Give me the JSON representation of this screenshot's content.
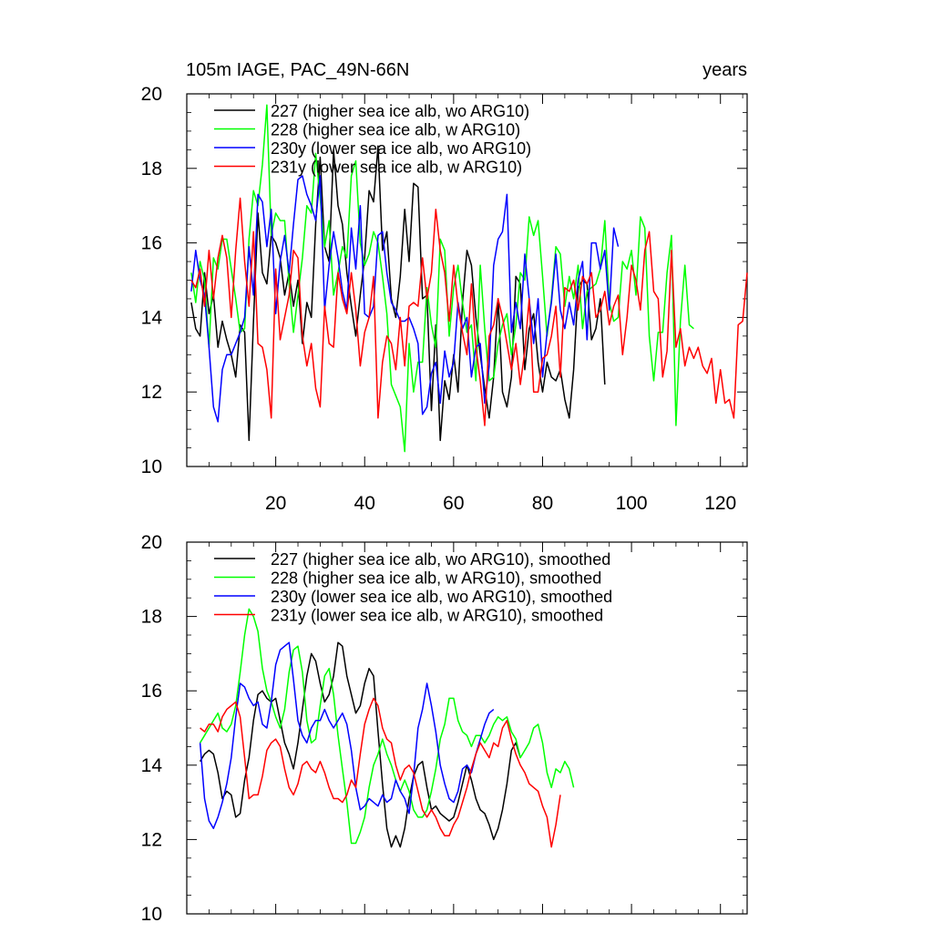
{
  "chart_data": [
    {
      "type": "line",
      "title_left": "105m IAGE, PAC_49N-66N",
      "title_right": "years",
      "xlim": [
        0,
        126
      ],
      "ylim": [
        10,
        20
      ],
      "xticks": [
        20,
        40,
        60,
        80,
        100,
        120
      ],
      "yticks": [
        10,
        12,
        14,
        16,
        18,
        20
      ],
      "show_x_tick_labels": true,
      "series": [
        {
          "name": "227 (higher sea ice alb, wo ARG10)",
          "color": "#000000",
          "x_start": 1,
          "values": [
            14.4,
            13.7,
            13.5,
            15.2,
            14.1,
            14.6,
            13.2,
            13.9,
            13.4,
            13.0,
            12.4,
            13.8,
            13.6,
            10.7,
            13.9,
            16.8,
            15.2,
            14.9,
            16.2,
            16.0,
            15.6,
            14.6,
            15.2,
            14.3,
            15.0,
            13.3,
            14.4,
            14.0,
            16.5,
            18.3,
            15.9,
            15.5,
            18.5,
            17.0,
            16.5,
            15.2,
            14.3,
            13.5,
            14.6,
            15.6,
            17.4,
            17.1,
            18.6,
            15.8,
            16.3,
            14.5,
            14.0,
            15.1,
            16.9,
            15.5,
            17.6,
            17.5,
            14.5,
            14.6,
            11.5,
            13.8,
            10.7,
            12.3,
            11.8,
            13.0,
            12.0,
            14.4,
            15.8,
            15.4,
            14.0,
            13.0,
            12.1,
            11.3,
            12.4,
            14.5,
            12.0,
            11.6,
            12.4,
            15.1,
            14.9,
            12.6,
            13.7,
            14.1,
            12.8,
            12.0,
            12.8,
            12.4,
            12.3,
            12.6,
            11.8,
            11.3,
            12.6,
            14.8,
            15.0,
            14.9,
            13.4,
            13.7,
            14.5,
            12.2
          ],
          "dash": false
        },
        {
          "name": "228 (higher sea ice alb, w ARG10)",
          "color": "#00ff00",
          "x_start": 1,
          "values": [
            15.2,
            14.4,
            15.5,
            15.0,
            13.2,
            15.6,
            15.3,
            16.1,
            16.1,
            15.3,
            14.5,
            13.6,
            13.7,
            16.1,
            17.4,
            17.0,
            18.1,
            19.7,
            16.2,
            16.8,
            16.6,
            16.6,
            14.9,
            13.6,
            14.6,
            15.6,
            17.0,
            16.8,
            18.4,
            17.2,
            15.9,
            16.6,
            14.6,
            15.2,
            15.9,
            15.6,
            17.8,
            18.2,
            16.0,
            15.4,
            15.7,
            16.3,
            16.0,
            15.1,
            14.1,
            12.2,
            11.9,
            11.6,
            10.4,
            13.3,
            12.0,
            12.8,
            12.8,
            14.8,
            13.8,
            13.2,
            16.1,
            15.8,
            13.5,
            14.8,
            15.4,
            14.4,
            13.6,
            13.8,
            12.3,
            15.4,
            13.7,
            12.3,
            12.4,
            13.3,
            13.8,
            14.1,
            13.0,
            13.8,
            15.2,
            15.0,
            16.7,
            16.2,
            16.6,
            15.1,
            13.5,
            14.5,
            15.9,
            15.7,
            14.3,
            15.1,
            14.5,
            15.4,
            13.7,
            14.7,
            14.8,
            14.9,
            15.3,
            16.6,
            14.4,
            13.9,
            14.0,
            15.5,
            15.3,
            15.8,
            14.6,
            16.7,
            16.4,
            13.5,
            12.3,
            13.6,
            13.6,
            15.2,
            16.2,
            11.1,
            13.9,
            15.4,
            13.8,
            13.7
          ],
          "dash": false
        },
        {
          "name": "230y (lower sea ice alb, wo ARG10)",
          "color": "#0000ff",
          "x_start": 1,
          "values": [
            14.7,
            15.8,
            15.0,
            14.6,
            13.2,
            11.6,
            11.2,
            12.6,
            13.0,
            13.0,
            13.3,
            13.6,
            14.0,
            15.9,
            14.6,
            17.3,
            17.1,
            15.9,
            16.9,
            14.1,
            15.5,
            16.2,
            15.2,
            16.5,
            17.7,
            17.8,
            17.3,
            17.0,
            16.6,
            17.8,
            14.2,
            15.4,
            16.3,
            15.6,
            14.7,
            14.2,
            16.4,
            15.3,
            17.0,
            14.1,
            14.0,
            14.3,
            16.2,
            16.3,
            15.2,
            14.4,
            14.2,
            13.9,
            13.9,
            14.0,
            13.7,
            13.3,
            11.4,
            11.6,
            12.5,
            12.8,
            11.7,
            13.1,
            12.4,
            12.8,
            14.4,
            13.7,
            14.0,
            12.4,
            13.2,
            13.3,
            11.7,
            12.7,
            15.4,
            16.1,
            16.3,
            17.3,
            13.6,
            14.4,
            13.7,
            15.7,
            14.5,
            13.3,
            14.5,
            12.4,
            13.6,
            14.4,
            15.7,
            14.2,
            13.7,
            14.4,
            13.8,
            15.0,
            15.5,
            13.4,
            16.0,
            16.0,
            15.3,
            15.8,
            14.2,
            16.4,
            15.9
          ],
          "dash": false
        },
        {
          "name": "231y (lower sea ice alb, w ARG10)",
          "color": "#ff0000",
          "x_start": 1,
          "values": [
            15.0,
            14.8,
            15.3,
            14.3,
            15.8,
            14.5,
            15.6,
            16.2,
            15.6,
            14.0,
            15.8,
            17.2,
            15.5,
            14.3,
            16.3,
            13.3,
            13.2,
            12.6,
            11.3,
            15.3,
            13.4,
            14.0,
            14.6,
            15.8,
            15.6,
            13.5,
            12.7,
            13.3,
            12.1,
            11.6,
            14.3,
            13.3,
            13.2,
            15.2,
            14.5,
            14.1,
            15.2,
            14.2,
            12.7,
            13.6,
            14.0,
            15.1,
            11.3,
            12.8,
            13.5,
            13.3,
            12.6,
            14.0,
            12.7,
            14.3,
            14.4,
            14.3,
            15.6,
            14.5,
            15.2,
            16.9,
            15.8,
            15.2,
            13.9,
            15.4,
            14.3,
            13.6,
            13.0,
            14.9,
            13.2,
            12.3,
            11.1,
            13.5,
            13.8,
            14.5,
            14.0,
            13.3,
            12.6,
            13.3,
            12.2,
            13.1,
            14.5,
            12.0,
            12.0,
            12.9,
            13.0,
            13.5,
            14.3,
            12.4,
            14.8,
            14.7,
            15.0,
            14.2,
            15.1,
            14.9,
            15.2,
            14.0,
            14.2,
            14.7,
            13.8,
            14.3,
            14.6,
            13.0,
            14.0,
            15.4,
            15.0,
            14.2,
            15.8,
            16.3,
            14.7,
            14.5,
            12.4,
            13.1,
            15.8,
            13.2,
            13.7,
            12.7,
            13.2,
            12.9,
            13.2,
            12.7,
            12.5,
            12.9,
            11.7,
            12.6,
            11.7,
            11.8,
            11.3,
            13.8,
            13.9,
            15.2
          ],
          "dash": false
        }
      ]
    },
    {
      "type": "line",
      "xlim": [
        0,
        126
      ],
      "ylim": [
        10,
        20
      ],
      "xticks": [
        20,
        40,
        60,
        80,
        100,
        120
      ],
      "yticks": [
        10,
        12,
        14,
        16,
        18,
        20
      ],
      "show_x_tick_labels": false,
      "series": [
        {
          "name": "227 (higher sea ice alb, wo ARG10), smoothed",
          "color": "#000000",
          "x_start": 3,
          "values": [
            14.1,
            14.3,
            14.4,
            14.3,
            13.8,
            13.1,
            13.3,
            13.2,
            12.6,
            12.7,
            13.6,
            14.2,
            15.2,
            15.9,
            16.0,
            15.8,
            15.7,
            15.8,
            15.2,
            14.6,
            14.3,
            13.9,
            14.6,
            15.5,
            16.4,
            17.0,
            16.8,
            16.2,
            15.7,
            15.9,
            16.4,
            17.3,
            17.2,
            16.4,
            15.9,
            15.4,
            15.6,
            16.2,
            16.6,
            16.4,
            14.9,
            13.5,
            12.3,
            11.8,
            12.1,
            11.8,
            12.3,
            13.1,
            13.7,
            14.0,
            14.1,
            13.4,
            12.8,
            12.9,
            12.7,
            12.6,
            12.5,
            12.6,
            13.0,
            13.5,
            14.0,
            13.6,
            13.1,
            12.8,
            12.7,
            12.4,
            12.0,
            12.3,
            12.8,
            13.5,
            14.4,
            14.6,
            14.2
          ],
          "dash": false
        },
        {
          "name": "228 (higher sea ice alb, w ARG10), smoothed",
          "color": "#00ff00",
          "x_start": 3,
          "values": [
            14.6,
            14.8,
            15.0,
            15.2,
            15.4,
            15.0,
            14.9,
            15.1,
            15.6,
            16.5,
            17.5,
            18.2,
            18.0,
            17.6,
            16.6,
            16.0,
            15.7,
            15.3,
            15.0,
            15.5,
            16.5,
            17.1,
            17.2,
            16.5,
            15.2,
            14.6,
            14.7,
            15.6,
            16.4,
            16.6,
            15.9,
            14.8,
            13.9,
            13.0,
            11.9,
            11.9,
            12.2,
            12.6,
            13.4,
            14.0,
            14.3,
            14.7,
            14.3,
            14.0,
            13.6,
            13.3,
            13.6,
            13.3,
            12.8,
            12.6,
            12.6,
            12.8,
            13.3,
            13.9,
            14.7,
            15.1,
            15.8,
            15.8,
            15.2,
            14.9,
            14.8,
            14.5,
            14.8,
            14.8,
            14.6,
            14.8,
            15.1,
            15.3,
            15.2,
            15.3,
            14.9,
            14.7,
            14.2,
            14.4,
            14.6,
            15.0,
            15.1,
            14.6,
            13.8,
            13.4,
            13.9,
            13.8,
            14.1,
            13.9,
            13.4
          ],
          "dash": false
        },
        {
          "name": "230y (lower sea ice alb, wo ARG10), smoothed",
          "color": "#0000ff",
          "x_start": 3,
          "values": [
            14.6,
            13.1,
            12.5,
            12.3,
            12.6,
            13.0,
            13.5,
            14.2,
            15.3,
            16.2,
            16.1,
            15.8,
            15.6,
            15.7,
            15.1,
            15.0,
            15.7,
            16.7,
            17.1,
            17.2,
            17.3,
            16.3,
            15.2,
            14.8,
            14.6,
            15.0,
            15.2,
            15.2,
            15.5,
            15.2,
            15.0,
            15.2,
            15.4,
            15.1,
            14.4,
            13.4,
            12.8,
            12.9,
            13.1,
            13.0,
            12.9,
            13.2,
            13.0,
            13.1,
            13.6,
            13.3,
            13.1,
            12.7,
            13.7,
            15.0,
            15.5,
            16.2,
            15.6,
            14.9,
            14.0,
            13.5,
            13.1,
            13.0,
            13.3,
            13.9,
            14.0,
            13.8,
            14.3,
            14.7,
            15.1,
            15.4,
            15.5
          ],
          "dash": false
        },
        {
          "name": "231y (lower sea ice alb, w ARG10), smoothed",
          "color": "#ff0000",
          "x_start": 3,
          "values": [
            15.0,
            14.9,
            15.1,
            15.1,
            14.9,
            15.3,
            15.5,
            15.6,
            15.7,
            15.3,
            14.2,
            13.1,
            13.2,
            13.2,
            13.7,
            14.4,
            14.6,
            14.7,
            14.5,
            13.9,
            13.4,
            13.2,
            13.5,
            14.0,
            14.1,
            13.9,
            13.8,
            14.1,
            13.8,
            13.4,
            13.1,
            13.1,
            13.0,
            13.2,
            13.6,
            13.4,
            14.3,
            15.1,
            15.5,
            15.8,
            15.6,
            15.0,
            14.7,
            14.6,
            14.0,
            13.6,
            13.9,
            14.0,
            13.8,
            13.3,
            12.8,
            12.6,
            12.8,
            12.6,
            12.3,
            12.1,
            12.1,
            12.4,
            12.6,
            13.0,
            13.4,
            13.9,
            14.3,
            14.6,
            14.4,
            14.2,
            14.6,
            14.5,
            15.0,
            15.2,
            14.7,
            14.3,
            14.0,
            13.8,
            13.5,
            13.4,
            13.3,
            12.9,
            12.6,
            11.8,
            12.4,
            13.2
          ],
          "dash": false
        }
      ]
    }
  ]
}
